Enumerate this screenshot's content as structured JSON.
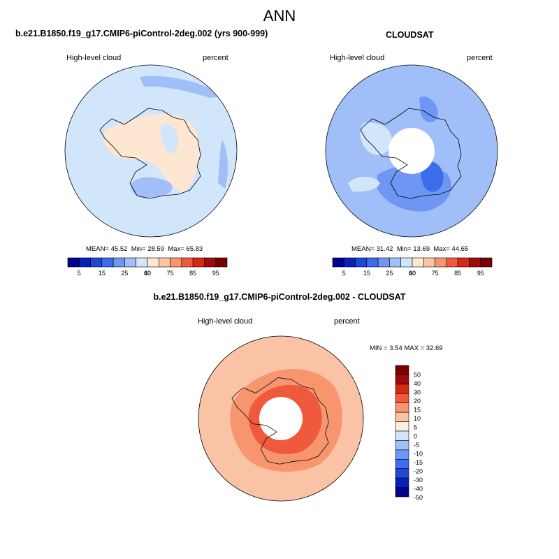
{
  "main_title": "ANN",
  "colors": {
    "abs_scale": [
      "#00008c",
      "#0a1ebe",
      "#1e46d7",
      "#3c6eeb",
      "#6e96f5",
      "#a0bef8",
      "#d2e6fb",
      "#fde6d2",
      "#fbc3a5",
      "#f7966e",
      "#f05a3c",
      "#d72814",
      "#a00a0a",
      "#780000"
    ],
    "diff_scale": [
      "#00008c",
      "#0a1ebe",
      "#1e46d7",
      "#3c6eeb",
      "#6e96f5",
      "#a0bef8",
      "#d2e6fb",
      "#fdeede",
      "#fbc3a5",
      "#f7966e",
      "#f05a3c",
      "#d72814",
      "#a00a0a",
      "#780000"
    ],
    "missing": "#ffffff",
    "coast": "#000000"
  },
  "panels": {
    "model": {
      "title": "b.e21.B1850.f19_g17.CMIP6-piControl-2deg.002 (yrs 900-999)",
      "left_label": "High-level cloud",
      "right_label": "percent",
      "mean_label": "MEAN=",
      "mean": "45.52",
      "min_label": "Min=",
      "min": "28.59",
      "max_label": "Max=",
      "max": "65.83"
    },
    "obs": {
      "title": "CLOUDSAT",
      "left_label": "High-level cloud",
      "right_label": "percent",
      "mean_label": "MEAN=",
      "mean": "31.42",
      "min_label": "Min=",
      "min": "13.69",
      "max_label": "Max=",
      "max": "44.65"
    },
    "diff": {
      "title": "b.e21.B1850.f19_g17.CMIP6-piControl-2deg.002 - CLOUDSAT",
      "left_label": "High-level cloud",
      "right_label": "percent",
      "stats_text": "MIN =   3.54 MAX =  32.69"
    }
  },
  "chart_data": [
    {
      "type": "heatmap",
      "projection": "south polar stereographic",
      "title": "b.e21.B1850.f19_g17.CMIP6-piControl-2deg.002 (yrs 900-999)",
      "variable": "High-level cloud",
      "units": "percent",
      "stats": {
        "mean": 45.52,
        "min": 28.59,
        "max": 65.83
      },
      "colorbar_ticks": [
        "5",
        "15",
        "25",
        "40",
        "60",
        "75",
        "85",
        "95"
      ],
      "colorbar_levels": [
        5,
        10,
        15,
        20,
        25,
        30,
        40,
        50,
        60,
        70,
        75,
        80,
        85,
        90,
        95
      ],
      "regions": [
        {
          "name": "ocean-background",
          "level": 6
        },
        {
          "name": "antarctic-interior",
          "level": 7
        },
        {
          "name": "east-antarctic-patch",
          "level": 6
        },
        {
          "name": "ross-ice-shelf",
          "level": 5
        },
        {
          "name": "ne-ocean-patch",
          "level": 5
        },
        {
          "name": "east-edge-patch",
          "level": 5
        }
      ]
    },
    {
      "type": "heatmap",
      "projection": "south polar stereographic",
      "title": "CLOUDSAT",
      "variable": "High-level cloud",
      "units": "percent",
      "stats": {
        "mean": 31.42,
        "min": 13.69,
        "max": 44.65
      },
      "colorbar_ticks": [
        "5",
        "15",
        "25",
        "40",
        "60",
        "75",
        "85",
        "95"
      ],
      "colorbar_levels": [
        5,
        10,
        15,
        20,
        25,
        30,
        40,
        50,
        60,
        70,
        75,
        80,
        85,
        90,
        95
      ],
      "regions": [
        {
          "name": "ocean-background",
          "level": 5
        },
        {
          "name": "peninsula-band",
          "level": 6
        },
        {
          "name": "ross-sea-region",
          "level": 4
        },
        {
          "name": "east-ant-patch",
          "level": 4
        },
        {
          "name": "deep-core",
          "level": 3
        },
        {
          "name": "sw-ocean-ring",
          "level": 6
        },
        {
          "name": "pole-hole",
          "level": "missing"
        }
      ]
    },
    {
      "type": "heatmap",
      "projection": "south polar stereographic",
      "title": "b.e21.B1850.f19_g17.CMIP6-piControl-2deg.002 - CLOUDSAT",
      "variable": "High-level cloud",
      "units": "percent",
      "stats": {
        "min": 3.54,
        "max": 32.69
      },
      "colorbar_ticks": [
        "50",
        "40",
        "30",
        "20",
        "15",
        "10",
        "5",
        "0",
        "-5",
        "-10",
        "-15",
        "-20",
        "-30",
        "-40",
        "-50"
      ],
      "colorbar_levels": [
        -50,
        -40,
        -30,
        -20,
        -15,
        -10,
        -5,
        0,
        5,
        10,
        15,
        20,
        30,
        40,
        50
      ],
      "regions": [
        {
          "name": "ocean-background",
          "level": 8
        },
        {
          "name": "interior-ring",
          "level": 9
        },
        {
          "name": "inner-ring",
          "level": 10
        },
        {
          "name": "pole-hole",
          "level": "missing"
        }
      ]
    }
  ]
}
